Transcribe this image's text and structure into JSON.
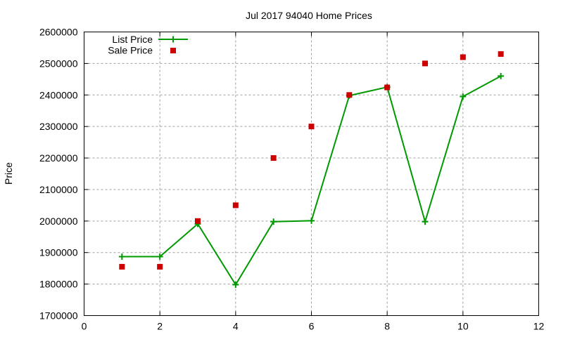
{
  "chart_data": {
    "type": "line",
    "title": "Jul 2017 94040 Home Prices",
    "xlabel": "",
    "ylabel": "Price",
    "xlim": [
      0,
      12
    ],
    "ylim": [
      1700000,
      2600000
    ],
    "xticks": [
      0,
      2,
      4,
      6,
      8,
      10,
      12
    ],
    "yticks": [
      1700000,
      1800000,
      1900000,
      2000000,
      2100000,
      2200000,
      2300000,
      2400000,
      2500000,
      2600000
    ],
    "grid": true,
    "legend_position": "top-left",
    "x": [
      1,
      2,
      3,
      4,
      5,
      6,
      7,
      8,
      9,
      10,
      11
    ],
    "series": [
      {
        "name": "List Price",
        "style": "linespoints",
        "marker": "plus",
        "color": "#009900",
        "values": [
          1887000,
          1887000,
          1991000,
          1798000,
          1998000,
          2001000,
          2398000,
          2425000,
          1998000,
          2395000,
          2460000
        ]
      },
      {
        "name": "Sale Price",
        "style": "points",
        "marker": "square",
        "color": "#cc0000",
        "values": [
          1855000,
          1855000,
          2000000,
          2050000,
          2200000,
          2300000,
          2400000,
          2424000,
          2500000,
          2520000,
          2530000
        ]
      }
    ]
  }
}
